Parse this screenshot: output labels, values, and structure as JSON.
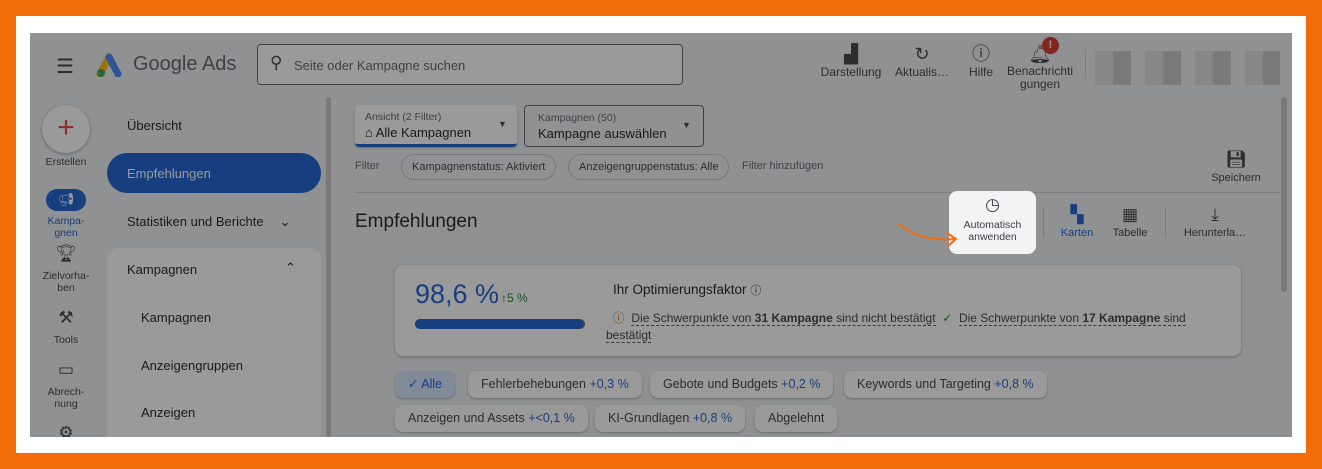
{
  "header": {
    "app_name": "Google Ads",
    "search_placeholder": "Seite oder Kampagne suchen",
    "actions": [
      {
        "label": "Darstellung",
        "icon": "appearance-icon"
      },
      {
        "label": "Aktualis…",
        "icon": "refresh-icon"
      },
      {
        "label": "Hilfe",
        "icon": "help-icon"
      },
      {
        "label": "Benachrichti",
        "label2": "gungen",
        "icon": "bell-icon",
        "badge": "!"
      }
    ]
  },
  "rail": {
    "create": "Erstellen",
    "items": [
      {
        "l1": "Kampa-",
        "l2": "gnen",
        "icon": "megaphone-icon",
        "active": true
      },
      {
        "l1": "Zielvorha-",
        "l2": "ben",
        "icon": "trophy-icon"
      },
      {
        "l1": "Tools",
        "l2": "",
        "icon": "tools-icon"
      },
      {
        "l1": "Abrech-",
        "l2": "nung",
        "icon": "billing-icon"
      }
    ]
  },
  "nav": {
    "overview": "Übersicht",
    "recommendations": "Empfehlungen",
    "stats": "Statistiken und Berichte",
    "campaigns_section": "Kampagnen",
    "sub": [
      "Kampagnen",
      "Anzeigengruppen",
      "Anzeigen"
    ]
  },
  "main": {
    "view_dropdown": {
      "label": "Ansicht (2 Filter)",
      "value": "Alle Kampagnen"
    },
    "campaign_dropdown": {
      "label": "Kampagnen (50)",
      "value": "Kampagne auswählen"
    },
    "filter_label": "Filter",
    "filters": [
      "Kampagnenstatus: Aktiviert",
      "Anzeigengruppenstatus: Alle"
    ],
    "add_filter": "Filter hinzufügen",
    "save": "Speichern",
    "title": "Empfehlungen",
    "auto_apply": {
      "l1": "Automatisch",
      "l2": "anwenden"
    },
    "views": {
      "cards": "Karten",
      "table": "Tabelle",
      "download": "Herunterla…"
    },
    "score": {
      "value": "98,6 %",
      "change": "5 %",
      "progress": 98.6,
      "title": "Ihr Optimierungsfaktor",
      "warn_pre": "Die Schwerpunkte von ",
      "warn_bold": "31 Kampagne",
      "warn_post": " sind nicht bestätigt",
      "ok_pre": "Die Schwerpunkte von ",
      "ok_bold": "17 Kampagne",
      "ok_post": " sind",
      "ok_post2": "bestätigt"
    },
    "categories": [
      {
        "label": "Alle",
        "selected": true
      },
      {
        "label": "Fehlerbehebungen",
        "pct": "+0,3 %"
      },
      {
        "label": "Gebote und Budgets",
        "pct": "+0,2 %"
      },
      {
        "label": "Keywords und Targeting",
        "pct": "+0,8 %"
      },
      {
        "label": "Anzeigen und Assets",
        "pct": "+<0,1 %"
      },
      {
        "label": "KI-Grundlagen",
        "pct": "+0,8 %"
      },
      {
        "label": "Abgelehnt"
      }
    ]
  },
  "colors": {
    "frame": "#f26c0a",
    "accent": "#1a5fd0",
    "highlight_arrow": "#f26c0a"
  }
}
